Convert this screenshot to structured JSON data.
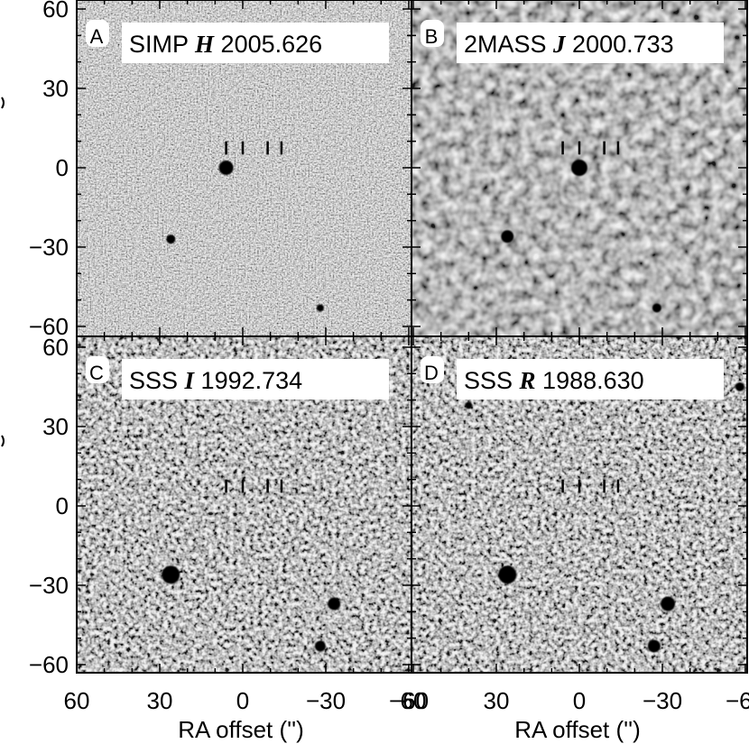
{
  "figure": {
    "y_ticks": [
      "60",
      "30",
      "0",
      "−30",
      "−60"
    ],
    "x_ticks": [
      "60",
      "30",
      "0",
      "−30",
      "−60"
    ],
    "x_label": "RA offset ('')",
    "colors": {
      "background_gray": "#9a9a9a",
      "source": "#000000",
      "label_box": "#ffffff",
      "frame": "#000000"
    },
    "panels": [
      {
        "letter": "A",
        "survey": "SIMP",
        "band": "H",
        "epoch": "2005.626",
        "texture": "fine",
        "sources": [
          {
            "ra": 6,
            "dec": 0,
            "r": 8
          },
          {
            "ra": 26,
            "dec": -27,
            "r": 5
          },
          {
            "ra": -28,
            "dec": -53,
            "r": 4
          }
        ]
      },
      {
        "letter": "B",
        "survey": "2MASS",
        "band": "J",
        "epoch": "2000.733",
        "texture": "blotchy",
        "sources": [
          {
            "ra": 0,
            "dec": 0,
            "r": 9
          },
          {
            "ra": 26,
            "dec": -26,
            "r": 7
          },
          {
            "ra": -28,
            "dec": -53,
            "r": 5
          }
        ]
      },
      {
        "letter": "C",
        "survey": "SSS",
        "band": "I",
        "epoch": "1992.734",
        "texture": "coarse",
        "sources": [
          {
            "ra": 26,
            "dec": -26,
            "r": 10
          },
          {
            "ra": -33,
            "dec": -37,
            "r": 7
          },
          {
            "ra": -28,
            "dec": -53,
            "r": 6
          }
        ]
      },
      {
        "letter": "D",
        "survey": "SSS",
        "band": "R",
        "epoch": "1988.630",
        "texture": "coarse",
        "sources": [
          {
            "ra": 26,
            "dec": -26,
            "r": 10
          },
          {
            "ra": -32,
            "dec": -37,
            "r": 8
          },
          {
            "ra": -27,
            "dec": -53,
            "r": 7
          },
          {
            "ra": 40,
            "dec": 38,
            "r": 4
          },
          {
            "ra": -58,
            "dec": 45,
            "r": 5
          }
        ]
      }
    ]
  }
}
